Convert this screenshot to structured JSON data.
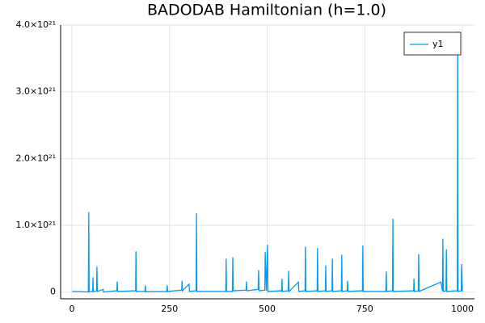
{
  "chart_data": {
    "type": "line",
    "title": "BADODAB Hamiltonian (h=1.0)",
    "x": [
      1,
      42,
      43,
      44,
      53,
      54,
      55,
      63,
      64,
      65,
      80,
      81,
      115,
      116,
      117,
      163,
      164,
      165,
      187,
      188,
      189,
      243,
      244,
      245,
      281,
      282,
      283,
      300,
      301,
      318,
      319,
      320,
      394,
      395,
      396,
      411,
      412,
      413,
      446,
      447,
      448,
      477,
      478,
      479,
      494,
      495,
      498,
      501,
      502,
      537,
      538,
      539,
      554,
      555,
      556,
      580,
      581,
      597,
      598,
      599,
      628,
      629,
      630,
      649,
      650,
      651,
      666,
      667,
      668,
      690,
      691,
      692,
      705,
      706,
      707,
      744,
      745,
      746,
      804,
      805,
      806,
      821,
      822,
      823,
      875,
      876,
      877,
      887,
      888,
      889,
      945,
      949,
      950,
      951,
      958,
      959,
      960,
      987,
      988,
      989,
      997,
      998,
      1000
    ],
    "series": [
      {
        "name": "y1",
        "color": "#009af9",
        "values": [
          1e+19,
          2e+18,
          1.2e+21,
          3e+18,
          1e+19,
          2.2e+20,
          5e+18,
          2e+19,
          3.8e+20,
          1e+19,
          4e+19,
          1e+18,
          2e+19,
          1.6e+20,
          1e+19,
          2e+19,
          6.1e+20,
          1e+19,
          1e+19,
          1e+20,
          5e+18,
          1e+19,
          1e+20,
          1e+19,
          3e+19,
          1.7e+20,
          2e+19,
          1.2e+20,
          1e+19,
          2e+19,
          1.18e+21,
          1e+19,
          1e+19,
          5e+20,
          1e+19,
          1e+19,
          5.2e+20,
          2e+19,
          3e+19,
          1.6e+20,
          2e+19,
          4e+19,
          3.3e+20,
          2e+19,
          3e+19,
          6e+20,
          2e+19,
          7.1e+20,
          1e+19,
          2e+19,
          2e+20,
          1e+19,
          2e+19,
          3.2e+20,
          1e+19,
          1.5e+20,
          1e+19,
          2e+19,
          6.8e+20,
          1e+19,
          2e+19,
          6.6e+20,
          1e+19,
          2e+19,
          4e+20,
          1e+19,
          2e+19,
          5e+20,
          1e+19,
          2e+19,
          5.6e+20,
          1e+19,
          2e+19,
          1.7e+20,
          1e+19,
          2e+19,
          7e+20,
          1e+19,
          1e+19,
          3.1e+20,
          1e+19,
          2e+19,
          1.1e+21,
          1e+19,
          2e+19,
          2e+20,
          1e+19,
          2e+19,
          5.7e+20,
          1e+19,
          1.5e+20,
          2e+19,
          8e+20,
          1e+19,
          2e+19,
          6.4e+20,
          1e+19,
          2e+19,
          3.9e+21,
          1e+19,
          2e+19,
          4.2e+20,
          1e+19
        ]
      }
    ],
    "xlim": [
      -29,
      1031
    ],
    "xticks": [
      0,
      250,
      500,
      750,
      1000
    ],
    "ylim": [
      -1e+20,
      4e+21
    ],
    "yticks": [
      0,
      {
        "value": 1e+21,
        "label": "1.0×10²¹"
      },
      {
        "value": 2e+21,
        "label": "2.0×10²¹"
      },
      {
        "value": 3e+21,
        "label": "3.0×10²¹"
      },
      {
        "value": 4e+21,
        "label": "4.0×10²¹"
      }
    ],
    "grid": true,
    "legend": "top-right"
  }
}
